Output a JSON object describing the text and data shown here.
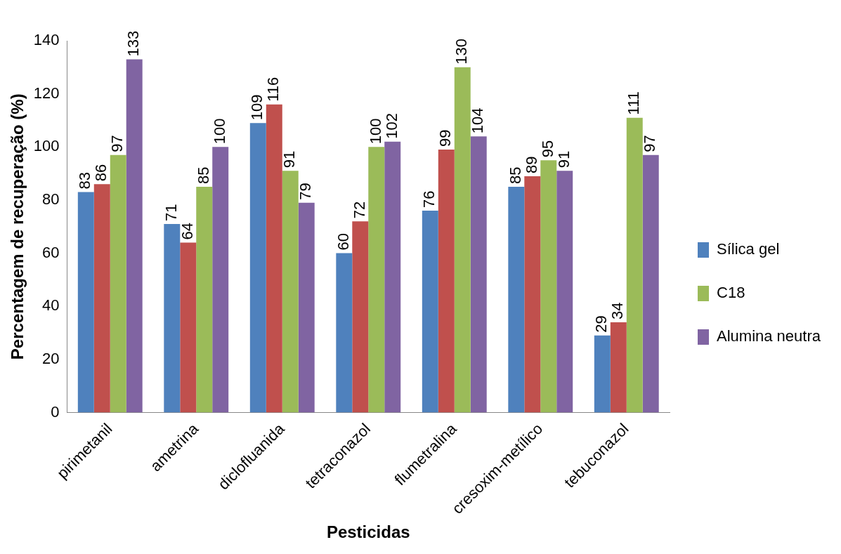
{
  "chart_data": {
    "type": "bar",
    "xlabel": "Pesticidas",
    "ylabel": "Percentagem de recuperação (%)",
    "categories": [
      "pirimetanil",
      "ametrina",
      "diclofluanida",
      "tetraconazol",
      "flumetralina",
      "cresoxim-metílico",
      "tebuconazol"
    ],
    "series": [
      {
        "name": "Sílica gel",
        "color": "#4f81bd",
        "values": [
          83,
          71,
          109,
          60,
          76,
          85,
          29
        ]
      },
      {
        "color": "#c0504d",
        "values": [
          86,
          64,
          116,
          72,
          99,
          89,
          34
        ]
      },
      {
        "name": "C18",
        "color": "#9bbb59",
        "values": [
          97,
          85,
          91,
          100,
          130,
          95,
          111
        ]
      },
      {
        "name": "Alumina neutra",
        "color": "#8064a2",
        "values": [
          133,
          100,
          79,
          102,
          104,
          91,
          97
        ]
      }
    ],
    "ylim": [
      0,
      140
    ],
    "yticks": [
      0,
      20,
      40,
      60,
      80,
      100,
      120,
      140
    ],
    "grid": false,
    "legend": "right",
    "data_labels": true
  }
}
